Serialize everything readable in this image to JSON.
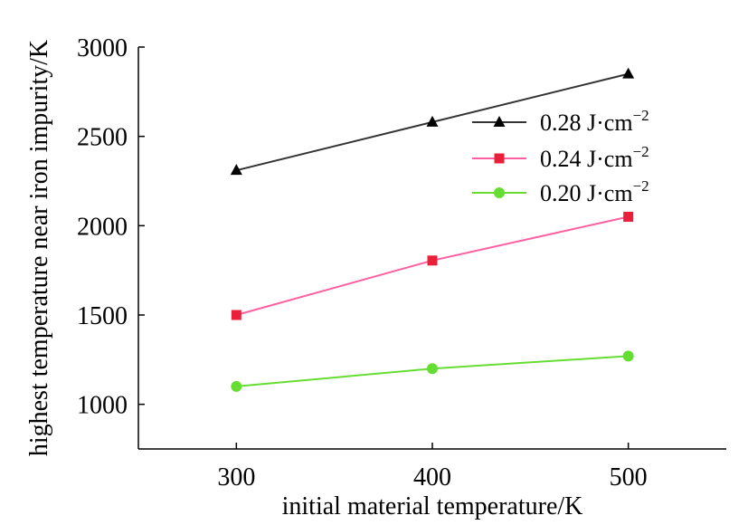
{
  "chart_data": {
    "type": "line",
    "xlabel": "initial material temperature/K",
    "ylabel": "highest temperature near iron impurity/K",
    "xlim": [
      250,
      550
    ],
    "ylim": [
      750,
      3000
    ],
    "x_ticks": [
      "300",
      "400",
      "500"
    ],
    "y_ticks": [
      "1000",
      "1500",
      "2000",
      "2500",
      "3000"
    ],
    "grid": false,
    "legend_position": "top-right",
    "x": [
      300,
      400,
      500
    ],
    "series": [
      {
        "name": "0.28 J·cm",
        "exponent": "−2",
        "marker": "triangle",
        "color": "#000000",
        "line_color": "#333333",
        "values": [
          2310,
          2580,
          2850
        ]
      },
      {
        "name": "0.24 J·cm",
        "exponent": "−2",
        "marker": "square",
        "color": "#e8203a",
        "line_color": "#ff5fa0",
        "values": [
          1500,
          1805,
          2050
        ]
      },
      {
        "name": "0.20 J·cm",
        "exponent": "−2",
        "marker": "circle",
        "color": "#66dd33",
        "line_color": "#66dd33",
        "values": [
          1100,
          1200,
          1270
        ]
      }
    ]
  }
}
